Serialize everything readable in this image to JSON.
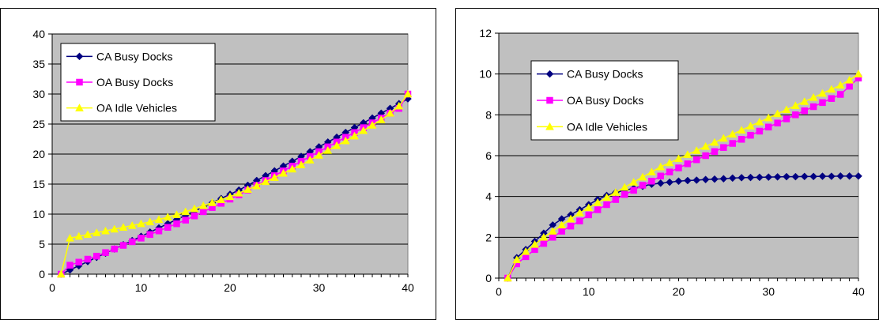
{
  "chart_data": [
    {
      "type": "line",
      "title": "",
      "xlabel": "",
      "ylabel": "",
      "xlim": [
        0,
        40
      ],
      "ylim": [
        0,
        40
      ],
      "xticks": [
        0,
        10,
        20,
        30,
        40
      ],
      "yticks": [
        0,
        5,
        10,
        15,
        20,
        25,
        30,
        35,
        40
      ],
      "grid": true,
      "legend_position": "top-left",
      "x": [
        1,
        2,
        3,
        4,
        5,
        6,
        7,
        8,
        9,
        10,
        11,
        12,
        13,
        14,
        15,
        16,
        17,
        18,
        19,
        20,
        21,
        22,
        23,
        24,
        25,
        26,
        27,
        28,
        29,
        30,
        31,
        32,
        33,
        34,
        35,
        36,
        37,
        38,
        39,
        40
      ],
      "series": [
        {
          "name": "CA Busy Docks",
          "color": "#000080",
          "marker": "diamond",
          "values": [
            0,
            0.7,
            1.4,
            2.1,
            2.8,
            3.5,
            4.2,
            4.9,
            5.6,
            6.3,
            7.0,
            7.7,
            8.4,
            9.1,
            9.8,
            10.5,
            11.2,
            11.9,
            12.6,
            13.3,
            14.0,
            14.8,
            15.6,
            16.4,
            17.2,
            18.0,
            18.8,
            19.6,
            20.4,
            21.2,
            22.0,
            22.8,
            23.6,
            24.4,
            25.2,
            26.0,
            26.8,
            27.6,
            28.4,
            29.2
          ]
        },
        {
          "name": "OA Busy Docks",
          "color": "#FF00FF",
          "marker": "square",
          "values": [
            0,
            1.5,
            2.0,
            2.5,
            3.0,
            3.6,
            4.2,
            4.8,
            5.4,
            6.0,
            6.6,
            7.2,
            7.8,
            8.4,
            9.0,
            9.7,
            10.4,
            11.1,
            11.8,
            12.5,
            13.2,
            14.0,
            14.8,
            15.6,
            16.4,
            17.2,
            18.0,
            18.8,
            19.6,
            20.4,
            21.2,
            22.0,
            22.8,
            23.6,
            24.4,
            25.2,
            26.0,
            26.8,
            27.6,
            30.0
          ]
        },
        {
          "name": "OA Idle Vehicles",
          "color": "#FFFF00",
          "marker": "triangle",
          "values": [
            0,
            6.0,
            6.3,
            6.6,
            6.9,
            7.2,
            7.5,
            7.8,
            8.1,
            8.4,
            8.7,
            9.1,
            9.5,
            9.9,
            10.4,
            10.9,
            11.4,
            11.9,
            12.4,
            12.9,
            13.5,
            14.1,
            14.7,
            15.4,
            16.1,
            16.8,
            17.5,
            18.2,
            19.0,
            19.8,
            20.6,
            21.4,
            22.2,
            23.0,
            23.9,
            24.8,
            25.7,
            26.8,
            28.0,
            30.0
          ]
        }
      ]
    },
    {
      "type": "line",
      "title": "",
      "xlabel": "",
      "ylabel": "",
      "xlim": [
        0,
        40
      ],
      "ylim": [
        0,
        12
      ],
      "xticks": [
        0,
        10,
        20,
        30,
        40
      ],
      "yticks": [
        0,
        2,
        4,
        6,
        8,
        10,
        12
      ],
      "grid": true,
      "legend_position": "top-left",
      "x": [
        1,
        2,
        3,
        4,
        5,
        6,
        7,
        8,
        9,
        10,
        11,
        12,
        13,
        14,
        15,
        16,
        17,
        18,
        19,
        20,
        21,
        22,
        23,
        24,
        25,
        26,
        27,
        28,
        29,
        30,
        31,
        32,
        33,
        34,
        35,
        36,
        37,
        38,
        39,
        40
      ],
      "series": [
        {
          "name": "CA Busy Docks",
          "color": "#000080",
          "marker": "diamond",
          "values": [
            0,
            1.0,
            1.4,
            1.8,
            2.2,
            2.6,
            2.9,
            3.1,
            3.35,
            3.6,
            3.85,
            4.05,
            4.2,
            4.3,
            4.4,
            4.5,
            4.6,
            4.65,
            4.7,
            4.75,
            4.78,
            4.8,
            4.83,
            4.85,
            4.87,
            4.9,
            4.92,
            4.93,
            4.94,
            4.95,
            4.96,
            4.97,
            4.97,
            4.98,
            4.98,
            4.99,
            4.99,
            5.0,
            5.0,
            5.0
          ]
        },
        {
          "name": "OA Busy Docks",
          "color": "#FF00FF",
          "marker": "square",
          "values": [
            0,
            0.7,
            1.05,
            1.4,
            1.7,
            2.0,
            2.3,
            2.55,
            2.8,
            3.1,
            3.35,
            3.6,
            3.85,
            4.1,
            4.3,
            4.55,
            4.75,
            5.0,
            5.2,
            5.4,
            5.6,
            5.8,
            6.0,
            6.2,
            6.4,
            6.6,
            6.8,
            7.0,
            7.2,
            7.4,
            7.6,
            7.8,
            8.0,
            8.2,
            8.4,
            8.6,
            8.8,
            9.0,
            9.4,
            9.8
          ]
        },
        {
          "name": "OA Idle Vehicles",
          "color": "#FFFF00",
          "marker": "triangle",
          "values": [
            0,
            0.9,
            1.3,
            1.65,
            2.0,
            2.3,
            2.6,
            2.9,
            3.2,
            3.45,
            3.7,
            3.95,
            4.2,
            4.45,
            4.7,
            4.95,
            5.2,
            5.45,
            5.65,
            5.85,
            6.05,
            6.25,
            6.45,
            6.65,
            6.85,
            7.05,
            7.25,
            7.45,
            7.65,
            7.85,
            8.05,
            8.25,
            8.45,
            8.65,
            8.85,
            9.05,
            9.25,
            9.45,
            9.7,
            10.0
          ]
        }
      ]
    }
  ]
}
